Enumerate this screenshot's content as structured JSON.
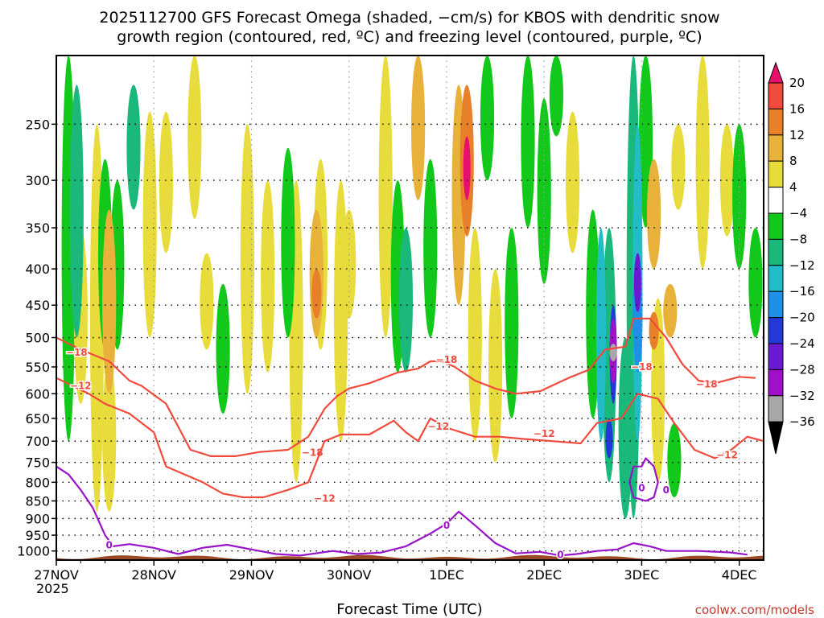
{
  "chart_data": {
    "type": "heatmap",
    "title_line1": "2025112700 GFS Forecast Omega (shaded, −cm/s) for KBOS with dendritic snow",
    "title_line2": "growth region (contoured, red, ºC) and freezing level (contoured, purple, ºC)",
    "xlabel": "Forecast Time (UTC)",
    "ylabel": "",
    "year_label": "2025",
    "credit": "coolwx.com/models",
    "x_range_hours": [
      0,
      174
    ],
    "x_ticks": [
      {
        "hour": 0,
        "label": "27NOV"
      },
      {
        "hour": 24,
        "label": "28NOV"
      },
      {
        "hour": 48,
        "label": "29NOV"
      },
      {
        "hour": 72,
        "label": "30NOV"
      },
      {
        "hour": 96,
        "label": "1DEC"
      },
      {
        "hour": 120,
        "label": "2DEC"
      },
      {
        "hour": 144,
        "label": "3DEC"
      },
      {
        "hour": 168,
        "label": "4DEC"
      }
    ],
    "y_range_hpa": [
      1030,
      200
    ],
    "y_ticks": [
      250,
      300,
      350,
      400,
      450,
      500,
      550,
      600,
      650,
      700,
      750,
      800,
      850,
      900,
      950,
      1000
    ],
    "colorbar": {
      "labels": [
        "20",
        "16",
        "12",
        "8",
        "4",
        "−4",
        "−8",
        "−12",
        "−16",
        "−20",
        "−24",
        "−28",
        "−32",
        "−36"
      ],
      "bins": [
        {
          "lo": 20,
          "hi": 24,
          "color": "#e8106e"
        },
        {
          "lo": 16,
          "hi": 20,
          "color": "#f04a3c"
        },
        {
          "lo": 12,
          "hi": 16,
          "color": "#e8802a"
        },
        {
          "lo": 8,
          "hi": 12,
          "color": "#e8b23a"
        },
        {
          "lo": 4,
          "hi": 8,
          "color": "#e8dc3c"
        },
        {
          "lo": -4,
          "hi": 4,
          "color": "#ffffff"
        },
        {
          "lo": -8,
          "hi": -4,
          "color": "#12c81a"
        },
        {
          "lo": -12,
          "hi": -8,
          "color": "#1ab87a"
        },
        {
          "lo": -16,
          "hi": -12,
          "color": "#22bcc8"
        },
        {
          "lo": -20,
          "hi": -16,
          "color": "#1e90e8"
        },
        {
          "lo": -24,
          "hi": -20,
          "color": "#2438d8"
        },
        {
          "lo": -28,
          "hi": -24,
          "color": "#6a1ad2"
        },
        {
          "lo": -32,
          "hi": -28,
          "color": "#a010c8"
        },
        {
          "lo": -36,
          "hi": -32,
          "color": "#a8a8a8"
        }
      ]
    },
    "omega_features": [
      {
        "hour": 3,
        "p_top": 200,
        "p_bot": 700,
        "value": -6
      },
      {
        "hour": 5,
        "p_top": 220,
        "p_bot": 500,
        "value": -9
      },
      {
        "hour": 6,
        "p_top": 350,
        "p_bot": 620,
        "value": 6
      },
      {
        "hour": 10,
        "p_top": 250,
        "p_bot": 880,
        "value": 6
      },
      {
        "hour": 12,
        "p_top": 280,
        "p_bot": 520,
        "value": -6
      },
      {
        "hour": 13,
        "p_top": 330,
        "p_bot": 600,
        "value": 9
      },
      {
        "hour": 13,
        "p_top": 540,
        "p_bot": 880,
        "value": 6
      },
      {
        "hour": 15,
        "p_top": 300,
        "p_bot": 520,
        "value": -6
      },
      {
        "hour": 19,
        "p_top": 220,
        "p_bot": 330,
        "value": -10
      },
      {
        "hour": 23,
        "p_top": 240,
        "p_bot": 500,
        "value": 5
      },
      {
        "hour": 27,
        "p_top": 240,
        "p_bot": 380,
        "value": 5
      },
      {
        "hour": 34,
        "p_top": 200,
        "p_bot": 340,
        "value": 6
      },
      {
        "hour": 37,
        "p_top": 380,
        "p_bot": 520,
        "value": 5
      },
      {
        "hour": 41,
        "p_top": 420,
        "p_bot": 640,
        "value": -6
      },
      {
        "hour": 47,
        "p_top": 250,
        "p_bot": 600,
        "value": 5
      },
      {
        "hour": 52,
        "p_top": 300,
        "p_bot": 560,
        "value": 5
      },
      {
        "hour": 57,
        "p_top": 270,
        "p_bot": 500,
        "value": -6
      },
      {
        "hour": 59,
        "p_top": 300,
        "p_bot": 800,
        "value": 5
      },
      {
        "hour": 65,
        "p_top": 280,
        "p_bot": 520,
        "value": 6
      },
      {
        "hour": 64,
        "p_top": 330,
        "p_bot": 500,
        "value": 10
      },
      {
        "hour": 64,
        "p_top": 400,
        "p_bot": 470,
        "value": 14
      },
      {
        "hour": 70,
        "p_top": 300,
        "p_bot": 700,
        "value": 6
      },
      {
        "hour": 72,
        "p_top": 330,
        "p_bot": 470,
        "value": 6
      },
      {
        "hour": 81,
        "p_top": 200,
        "p_bot": 500,
        "value": 6
      },
      {
        "hour": 84,
        "p_top": 300,
        "p_bot": 560,
        "value": -6
      },
      {
        "hour": 86,
        "p_top": 350,
        "p_bot": 560,
        "value": -9
      },
      {
        "hour": 89,
        "p_top": 200,
        "p_bot": 320,
        "value": 8
      },
      {
        "hour": 92,
        "p_top": 280,
        "p_bot": 500,
        "value": -6
      },
      {
        "hour": 99,
        "p_top": 220,
        "p_bot": 450,
        "value": 9
      },
      {
        "hour": 101,
        "p_top": 220,
        "p_bot": 360,
        "value": 12
      },
      {
        "hour": 101,
        "p_top": 260,
        "p_bot": 320,
        "value": 22
      },
      {
        "hour": 103,
        "p_top": 350,
        "p_bot": 700,
        "value": 5
      },
      {
        "hour": 106,
        "p_top": 200,
        "p_bot": 300,
        "value": -6
      },
      {
        "hour": 108,
        "p_top": 400,
        "p_bot": 750,
        "value": 5
      },
      {
        "hour": 112,
        "p_top": 350,
        "p_bot": 650,
        "value": -6
      },
      {
        "hour": 116,
        "p_top": 200,
        "p_bot": 350,
        "value": -6
      },
      {
        "hour": 120,
        "p_top": 230,
        "p_bot": 420,
        "value": -8
      },
      {
        "hour": 123,
        "p_top": 200,
        "p_bot": 260,
        "value": -6
      },
      {
        "hour": 127,
        "p_top": 240,
        "p_bot": 380,
        "value": 5
      },
      {
        "hour": 132,
        "p_top": 330,
        "p_bot": 650,
        "value": -8
      },
      {
        "hour": 134,
        "p_top": 350,
        "p_bot": 700,
        "value": -14
      },
      {
        "hour": 136,
        "p_top": 350,
        "p_bot": 800,
        "value": -12
      },
      {
        "hour": 137,
        "p_top": 450,
        "p_bot": 620,
        "value": -22
      },
      {
        "hour": 137,
        "p_top": 470,
        "p_bot": 580,
        "value": -29
      },
      {
        "hour": 137,
        "p_top": 510,
        "p_bot": 540,
        "value": -34
      },
      {
        "hour": 136,
        "p_top": 650,
        "p_bot": 740,
        "value": -22
      },
      {
        "hour": 140,
        "p_top": 500,
        "p_bot": 900,
        "value": -9
      },
      {
        "hour": 142,
        "p_top": 200,
        "p_bot": 900,
        "value": -10
      },
      {
        "hour": 143,
        "p_top": 250,
        "p_bot": 700,
        "value": -14
      },
      {
        "hour": 143,
        "p_top": 380,
        "p_bot": 560,
        "value": -18
      },
      {
        "hour": 143,
        "p_top": 380,
        "p_bot": 460,
        "value": -27
      },
      {
        "hour": 145,
        "p_top": 200,
        "p_bot": 350,
        "value": -8
      },
      {
        "hour": 147,
        "p_top": 280,
        "p_bot": 400,
        "value": 9
      },
      {
        "hour": 148,
        "p_top": 440,
        "p_bot": 800,
        "value": 6
      },
      {
        "hour": 147,
        "p_top": 460,
        "p_bot": 520,
        "value": 14
      },
      {
        "hour": 151,
        "p_top": 420,
        "p_bot": 500,
        "value": 8
      },
      {
        "hour": 153,
        "p_top": 250,
        "p_bot": 330,
        "value": 5
      },
      {
        "hour": 152,
        "p_top": 660,
        "p_bot": 840,
        "value": -7
      },
      {
        "hour": 159,
        "p_top": 200,
        "p_bot": 400,
        "value": 5
      },
      {
        "hour": 165,
        "p_top": 250,
        "p_bot": 360,
        "value": 6
      },
      {
        "hour": 168,
        "p_top": 250,
        "p_bot": 400,
        "value": -6
      },
      {
        "hour": 172,
        "p_top": 350,
        "p_bot": 500,
        "value": -6
      }
    ],
    "contours": [
      {
        "name": "-18",
        "color": "#f04a3c",
        "label": "−18",
        "label_positions": [
          [
            5,
            525
          ],
          [
            63,
            727
          ],
          [
            96,
            537
          ],
          [
            144,
            550
          ],
          [
            160,
            582
          ]
        ],
        "points": [
          [
            0,
            500
          ],
          [
            6,
            520
          ],
          [
            13,
            540
          ],
          [
            18,
            575
          ],
          [
            21,
            585
          ],
          [
            27,
            620
          ],
          [
            33,
            720
          ],
          [
            38,
            735
          ],
          [
            44,
            735
          ],
          [
            50,
            725
          ],
          [
            57,
            720
          ],
          [
            62,
            690
          ],
          [
            66,
            630
          ],
          [
            69,
            605
          ],
          [
            72,
            590
          ],
          [
            77,
            580
          ],
          [
            84,
            560
          ],
          [
            89,
            553
          ],
          [
            92,
            540
          ],
          [
            95,
            540
          ],
          [
            98,
            550
          ],
          [
            103,
            575
          ],
          [
            108,
            590
          ],
          [
            113,
            600
          ],
          [
            119,
            595
          ],
          [
            126,
            570
          ],
          [
            131,
            555
          ],
          [
            135,
            520
          ],
          [
            140,
            515
          ],
          [
            142,
            470
          ],
          [
            146,
            470
          ],
          [
            150,
            500
          ],
          [
            154,
            545
          ],
          [
            158,
            575
          ],
          [
            162,
            580
          ],
          [
            168,
            568
          ],
          [
            172,
            570
          ]
        ]
      },
      {
        "name": "-12",
        "color": "#f04a3c",
        "label": "−12",
        "label_positions": [
          [
            6,
            585
          ],
          [
            66,
            843
          ],
          [
            94,
            667
          ],
          [
            120,
            683
          ],
          [
            165,
            732
          ]
        ],
        "points": [
          [
            0,
            570
          ],
          [
            8,
            600
          ],
          [
            12,
            620
          ],
          [
            18,
            640
          ],
          [
            24,
            680
          ],
          [
            27,
            760
          ],
          [
            36,
            800
          ],
          [
            41,
            830
          ],
          [
            46,
            840
          ],
          [
            51,
            840
          ],
          [
            57,
            820
          ],
          [
            62,
            800
          ],
          [
            66,
            700
          ],
          [
            70,
            685
          ],
          [
            77,
            685
          ],
          [
            83,
            655
          ],
          [
            86,
            680
          ],
          [
            89,
            700
          ],
          [
            92,
            650
          ],
          [
            96,
            670
          ],
          [
            103,
            690
          ],
          [
            109,
            690
          ],
          [
            115,
            695
          ],
          [
            122,
            700
          ],
          [
            129,
            705
          ],
          [
            133,
            660
          ],
          [
            139,
            650
          ],
          [
            143,
            600
          ],
          [
            148,
            610
          ],
          [
            152,
            660
          ],
          [
            157,
            720
          ],
          [
            162,
            740
          ],
          [
            166,
            720
          ],
          [
            170,
            690
          ],
          [
            174,
            700
          ]
        ]
      },
      {
        "name": "0",
        "color": "#9814c8",
        "label": "0",
        "label_positions": [
          [
            13,
            982
          ],
          [
            96,
            920
          ],
          [
            124,
            1012
          ],
          [
            144,
            815
          ]
        ],
        "points": [
          [
            0,
            760
          ],
          [
            3,
            780
          ],
          [
            6,
            820
          ],
          [
            9,
            870
          ],
          [
            12,
            950
          ],
          [
            14,
            985
          ],
          [
            18,
            978
          ],
          [
            24,
            990
          ],
          [
            30,
            1010
          ],
          [
            36,
            990
          ],
          [
            42,
            980
          ],
          [
            48,
            995
          ],
          [
            54,
            1010
          ],
          [
            60,
            1015
          ],
          [
            68,
            1000
          ],
          [
            74,
            1010
          ],
          [
            80,
            1005
          ],
          [
            86,
            985
          ],
          [
            92,
            945
          ],
          [
            96,
            915
          ],
          [
            99,
            880
          ],
          [
            103,
            920
          ],
          [
            108,
            975
          ],
          [
            113,
            1008
          ],
          [
            119,
            1003
          ],
          [
            124,
            1015
          ],
          [
            128,
            1010
          ],
          [
            133,
            1000
          ],
          [
            138,
            995
          ],
          [
            142,
            975
          ],
          [
            146,
            985
          ],
          [
            150,
            1000
          ],
          [
            158,
            1000
          ],
          [
            166,
            1005
          ],
          [
            170,
            1012
          ]
        ]
      },
      {
        "name": "0-cell",
        "color": "#9814c8",
        "label": "0",
        "label_positions": [
          [
            150,
            820
          ]
        ],
        "closed": true,
        "points": [
          [
            142,
            760
          ],
          [
            144,
            760
          ],
          [
            145,
            740
          ],
          [
            147,
            760
          ],
          [
            148,
            800
          ],
          [
            147,
            840
          ],
          [
            145,
            850
          ],
          [
            142,
            840
          ],
          [
            141,
            800
          ]
        ]
      }
    ],
    "terrain_hpa": 1020
  }
}
